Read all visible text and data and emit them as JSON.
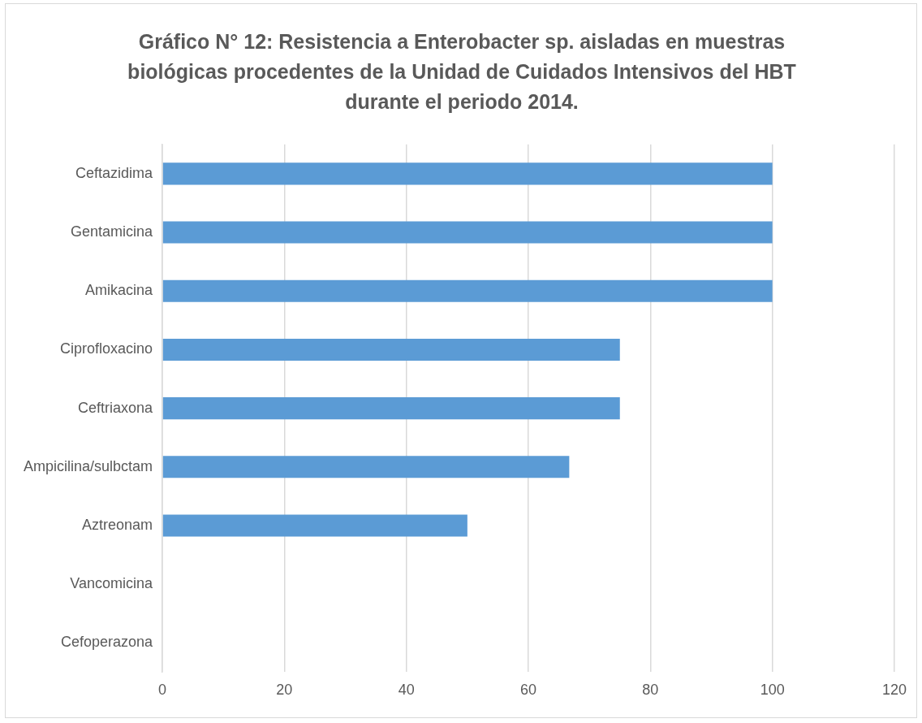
{
  "chart_data": {
    "type": "bar",
    "orientation": "horizontal",
    "title": "Gráfico N° 12: Resistencia a Enterobacter sp. aisladas en muestras biológicas procedentes de la Unidad de Cuidados Intensivos del HBT durante el periodo 2014.",
    "categories": [
      "Ceftazidima",
      "Gentamicina",
      "Amikacina",
      "Ciprofloxacino",
      "Ceftriaxona",
      "Ampicilina/sulbctam",
      "Aztreonam",
      "Vancomicina",
      "Cefoperazona"
    ],
    "values": [
      100,
      100,
      100,
      75,
      75,
      66.7,
      50,
      0,
      0
    ],
    "color": "#5b9bd5",
    "xlim": [
      0,
      120
    ],
    "xticks": [
      0,
      20,
      40,
      60,
      80,
      100,
      120
    ],
    "grid": "x",
    "legend": false
  }
}
